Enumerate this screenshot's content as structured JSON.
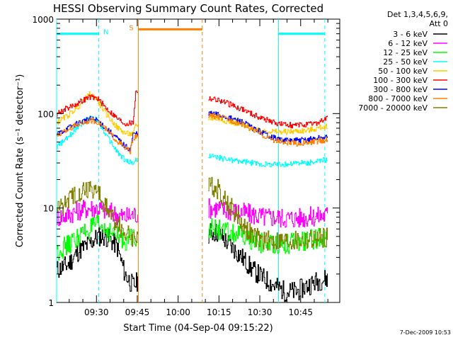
{
  "chart_data": {
    "type": "line",
    "title": "HESSI Observing Summary Count Rates, Corrected",
    "xlabel": "Start Time (04-Sep-04 09:15:22)",
    "ylabel": "Corrected Count Rate (s⁻¹ detector⁻¹)",
    "yscale": "log",
    "ylim": [
      1,
      1000
    ],
    "xlim_minutes": [
      0,
      104
    ],
    "x_tick_labels": [
      "09:30",
      "09:45",
      "10:00",
      "10:15",
      "10:30",
      "10:45"
    ],
    "x_tick_minutes": [
      14.633,
      29.633,
      44.633,
      59.633,
      74.633,
      89.633
    ],
    "y_tick_labels": [
      "1",
      "10",
      "100",
      "1000"
    ],
    "y_tick_values": [
      1,
      10,
      100,
      1000
    ],
    "legend_header": [
      "Det 1,3,4,5,6,9,",
      "Att 0"
    ],
    "legend_position": "right",
    "date_stamp": "7-Dec-2009 10:53",
    "series": [
      {
        "name": "3 - 6 keV",
        "color": "#000000",
        "x": [
          0,
          4,
          8,
          12,
          15,
          18,
          22,
          25,
          28,
          29,
          56,
          59,
          62,
          68,
          72,
          76,
          80,
          84,
          88,
          92,
          96,
          100
        ],
        "y": [
          2.2,
          2.5,
          3.5,
          4.2,
          5.0,
          5.0,
          4.0,
          2.0,
          1.5,
          1.6,
          5.5,
          5.5,
          4.5,
          3.0,
          2.2,
          1.8,
          1.5,
          1.3,
          1.3,
          1.5,
          1.7,
          1.8
        ]
      },
      {
        "name": "6 - 12 keV",
        "color": "#ff00ff",
        "x": [
          0,
          4,
          8,
          12,
          15,
          18,
          22,
          25,
          28,
          56,
          59,
          62,
          68,
          72,
          76,
          80,
          84,
          88,
          92,
          96,
          100
        ],
        "y": [
          8.0,
          8.5,
          9.5,
          10.0,
          10.0,
          9.5,
          8.5,
          8.0,
          8.5,
          10.0,
          10.0,
          9.5,
          9.0,
          8.5,
          8.0,
          8.0,
          7.8,
          7.8,
          8.0,
          8.2,
          8.5
        ]
      },
      {
        "name": "12 - 25 keV",
        "color": "#00ff00",
        "x": [
          0,
          4,
          8,
          12,
          15,
          18,
          22,
          25,
          28,
          56,
          59,
          62,
          68,
          72,
          76,
          80,
          84,
          88,
          92,
          96,
          100
        ],
        "y": [
          3.5,
          4.0,
          5.0,
          6.0,
          6.5,
          6.0,
          5.0,
          4.5,
          5.0,
          6.0,
          6.0,
          5.5,
          5.0,
          4.5,
          4.2,
          4.2,
          4.2,
          4.3,
          4.5,
          4.8,
          5.0
        ]
      },
      {
        "name": "25 - 50 keV",
        "color": "#00ffff",
        "x": [
          0,
          4,
          8,
          12,
          15,
          18,
          22,
          25,
          28,
          29,
          56,
          59,
          62,
          68,
          72,
          76,
          80,
          84,
          88,
          92,
          96,
          100
        ],
        "y": [
          45,
          55,
          75,
          90,
          85,
          60,
          40,
          32,
          30,
          32,
          36,
          34,
          33,
          31,
          30,
          29,
          29,
          29,
          30,
          30,
          31,
          33
        ]
      },
      {
        "name": "50 - 100 keV",
        "color": "#ffcc00",
        "x": [
          0,
          4,
          8,
          12,
          14,
          18,
          22,
          25,
          28,
          29,
          56,
          59,
          62,
          68,
          72,
          76,
          80,
          84,
          88,
          92,
          96,
          100
        ],
        "y": [
          80,
          95,
          120,
          160,
          150,
          100,
          72,
          62,
          60,
          75,
          90,
          88,
          84,
          76,
          70,
          66,
          64,
          64,
          65,
          66,
          70,
          75
        ]
      },
      {
        "name": "100 - 300 keV",
        "color": "#ff0000",
        "x": [
          0,
          4,
          8,
          12,
          15,
          18,
          22,
          25,
          28,
          29,
          56,
          59,
          62,
          68,
          72,
          76,
          80,
          84,
          88,
          92,
          96,
          100
        ],
        "y": [
          100,
          115,
          130,
          150,
          145,
          115,
          90,
          78,
          80,
          170,
          145,
          140,
          130,
          112,
          98,
          88,
          80,
          76,
          75,
          76,
          80,
          92
        ]
      },
      {
        "name": "300 - 800 keV",
        "color": "#0000ff",
        "x": [
          0,
          4,
          8,
          12,
          15,
          18,
          22,
          25,
          27,
          28,
          56,
          59,
          62,
          68,
          72,
          76,
          80,
          84,
          88,
          92,
          96,
          100
        ],
        "y": [
          60,
          70,
          80,
          88,
          85,
          70,
          55,
          45,
          42,
          60,
          100,
          98,
          92,
          82,
          70,
          62,
          55,
          52,
          52,
          53,
          55,
          56
        ]
      },
      {
        "name": "800 - 7000 keV",
        "color": "#ff8000",
        "x": [
          0,
          4,
          8,
          12,
          15,
          18,
          22,
          25,
          27,
          28,
          56,
          59,
          62,
          68,
          72,
          76,
          80,
          84,
          88,
          92,
          96,
          100
        ],
        "y": [
          58,
          68,
          78,
          85,
          82,
          68,
          52,
          43,
          40,
          55,
          95,
          93,
          88,
          78,
          67,
          58,
          52,
          49,
          48,
          49,
          51,
          53
        ]
      },
      {
        "name": "7000 - 20000 keV",
        "color": "#808000",
        "x": [
          0,
          4,
          8,
          12,
          15,
          18,
          22,
          25,
          28,
          56,
          59,
          62,
          68,
          72,
          76,
          80,
          84,
          88,
          92,
          96,
          100
        ],
        "y": [
          10.0,
          12.0,
          15.0,
          16.5,
          15.0,
          10.0,
          7.0,
          5.5,
          5.0,
          17.0,
          16.0,
          12.0,
          7.0,
          5.0,
          4.5,
          4.5,
          4.5,
          4.5,
          4.6,
          4.8,
          5.0
        ]
      }
    ],
    "state_bars": [
      {
        "label": "N",
        "color": "#00ffff",
        "x_start": 0,
        "x_end": 15.5,
        "level": 700
      },
      {
        "label": "S",
        "color": "#ff8000",
        "x_start": 30,
        "x_end": 53.5,
        "level": 780
      },
      {
        "label": "",
        "color": "#00ffff",
        "x_start": 81.5,
        "x_end": 98.5,
        "level": 700
      }
    ],
    "vlines": [
      {
        "x": 0,
        "color": "#00ffff",
        "style": "solid"
      },
      {
        "x": 15.5,
        "color": "#00ffff",
        "style": "dashed"
      },
      {
        "x": 30,
        "color": "#ff8000",
        "style": "solid"
      },
      {
        "x": 53.5,
        "color": "#ff8000",
        "style": "dashed"
      },
      {
        "x": 81.5,
        "color": "#00ffff",
        "style": "solid"
      },
      {
        "x": 98.5,
        "color": "#00ffff",
        "style": "dashed"
      }
    ]
  }
}
